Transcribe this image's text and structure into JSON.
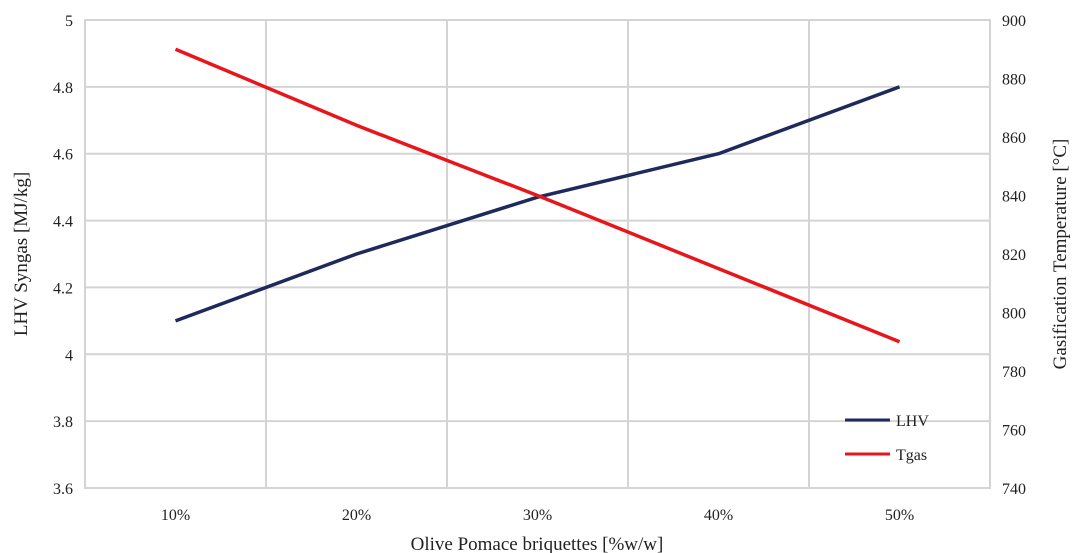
{
  "chart_data": {
    "type": "line",
    "title": "",
    "xlabel": "Olive Pomace briquettes [%w/w]",
    "ylabel": "LHV Syngas  [MJ/kg]",
    "y2label": "Gasification Temperature [°C]",
    "categories": [
      "10%",
      "20%",
      "30%",
      "40%",
      "50%"
    ],
    "ylim": [
      3.6,
      5
    ],
    "yticks": [
      "3.6",
      "3.8",
      "4",
      "4.2",
      "4.4",
      "4.6",
      "4.8",
      "5"
    ],
    "y2lim": [
      740,
      900
    ],
    "y2ticks": [
      "740",
      "760",
      "780",
      "800",
      "820",
      "840",
      "860",
      "880",
      "900"
    ],
    "grid": true,
    "legend_position": "bottom-right",
    "series": [
      {
        "name": "LHV",
        "axis": "left",
        "color": "#1f2a5c",
        "values": [
          4.1,
          4.3,
          4.47,
          4.6,
          4.8
        ]
      },
      {
        "name": "Tgas",
        "axis": "right",
        "color": "#e8161c",
        "values": [
          890,
          864,
          840,
          815,
          790
        ]
      }
    ]
  }
}
